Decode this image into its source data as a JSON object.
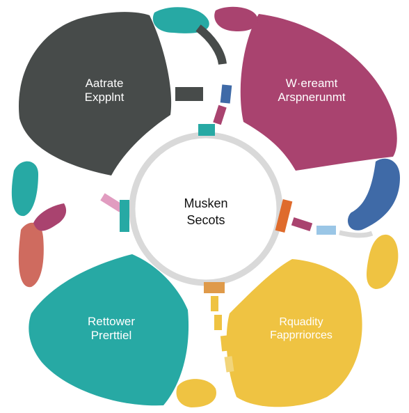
{
  "colors": {
    "charcoal": "#474b4a",
    "magenta": "#a9436f",
    "teal": "#27a9a4",
    "yellow": "#efc342",
    "blue": "#3f6aa7",
    "orange": "#df6b2c",
    "ring": "#d9d9d9",
    "coral": "#cf6b5f",
    "pink": "#e19cc0",
    "light_blue": "#9ac6e6",
    "text_light": "#ffffff",
    "text_dark": "#111111"
  },
  "center": {
    "line1": "Musken",
    "line2": "Secots"
  },
  "segments": {
    "top_left": {
      "line1": "Aatrate",
      "line2": "Expplnt"
    },
    "top_right": {
      "line1": "W·ereamt",
      "line2": "Arspnerunmt"
    },
    "bottom_left": {
      "line1": "Rettower",
      "line2": "Prerttiel"
    },
    "bottom_right": {
      "line1": "Rquadity",
      "line2": "Fapprriorces"
    }
  }
}
